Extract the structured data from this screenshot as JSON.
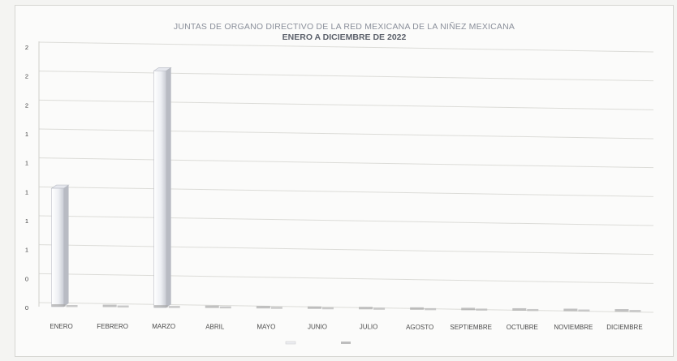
{
  "chart_data": {
    "type": "bar",
    "title": "JUNTAS DE ORGANO DIRECTIVO DE LA RED MEXICANA DE LA NIÑEZ MEXICANA",
    "subtitle": "ENERO A DICIEMBRE DE 2022",
    "categories": [
      "ENERO",
      "FEBRERO",
      "MARZO",
      "ABRIL",
      "MAYO",
      "JUNIO",
      "JULIO",
      "AGOSTO",
      "SEPTIEMBRE",
      "OCTUBRE",
      "NOVIEMBRE",
      "DICIEMBRE"
    ],
    "series": [
      {
        "name": "",
        "values": [
          1,
          0,
          2,
          0,
          0,
          0,
          0,
          0,
          0,
          0,
          0,
          0
        ],
        "color": "#ecedf1"
      },
      {
        "name": "",
        "values": [
          0,
          0,
          0,
          0,
          0,
          0,
          0,
          0,
          0,
          0,
          0,
          0
        ],
        "color": "#bdbdbd"
      }
    ],
    "ytick_labels": [
      "0",
      "0",
      "1",
      "1",
      "1",
      "1",
      "1",
      "2",
      "2",
      "2"
    ],
    "ylim": [
      0,
      2.2
    ],
    "grid": true,
    "legend_position": "bottom"
  }
}
